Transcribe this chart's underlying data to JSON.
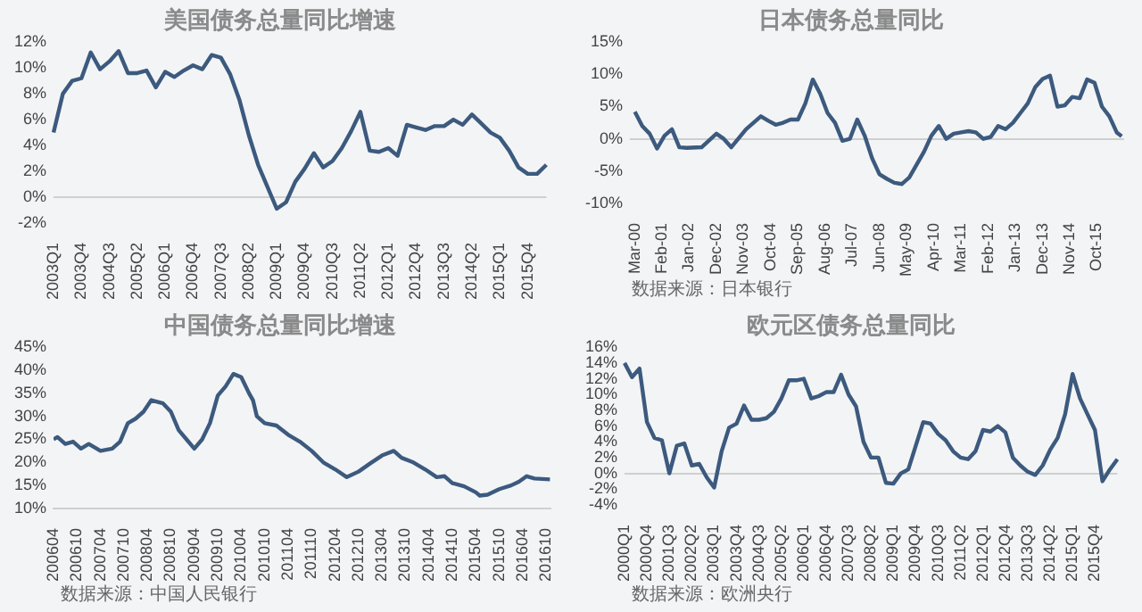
{
  "chart_data": [
    {
      "type": "line",
      "title": "美国债务总量同比增速",
      "color": "#3c5a7e",
      "categories": [
        "2003Q1",
        null,
        null,
        "2003Q4",
        null,
        null,
        "2004Q3",
        null,
        null,
        "2005Q2",
        null,
        null,
        "2006Q1",
        null,
        null,
        "2006Q4",
        null,
        null,
        "2007Q3",
        null,
        null,
        "2008Q2",
        null,
        null,
        "2009Q1",
        null,
        null,
        "2009Q4",
        null,
        null,
        "2010Q3",
        null,
        null,
        "2011Q2",
        null,
        null,
        "2012Q1",
        null,
        null,
        "2012Q4",
        null,
        null,
        "2013Q3",
        null,
        null,
        "2014Q2",
        null,
        null,
        "2015Q1",
        null,
        null,
        "2015Q4",
        null,
        null
      ],
      "values": [
        5.0,
        8.0,
        9.0,
        9.2,
        11.2,
        9.9,
        10.5,
        11.3,
        9.6,
        9.6,
        9.8,
        8.5,
        9.7,
        9.3,
        9.8,
        10.2,
        9.9,
        11.0,
        10.8,
        9.5,
        7.5,
        4.8,
        2.5,
        0.8,
        -0.9,
        -0.4,
        1.2,
        2.2,
        3.4,
        2.3,
        2.8,
        3.8,
        5.1,
        6.6,
        3.6,
        3.5,
        3.8,
        3.2,
        5.6,
        5.4,
        5.2,
        5.5,
        5.5,
        6.0,
        5.6,
        6.4,
        5.7,
        5.0,
        4.6,
        3.6,
        2.3,
        1.8,
        1.8,
        2.5
      ],
      "ylim": [
        -2,
        12
      ],
      "yticks": [
        {
          "value": -2,
          "label": "-2%"
        },
        {
          "value": 0,
          "label": "0%"
        },
        {
          "value": 2,
          "label": "2%"
        },
        {
          "value": 4,
          "label": "4%"
        },
        {
          "value": 6,
          "label": "6%"
        },
        {
          "value": 8,
          "label": "8%"
        },
        {
          "value": 10,
          "label": "10%"
        },
        {
          "value": 12,
          "label": "12%"
        }
      ]
    },
    {
      "type": "line",
      "title": "日本债务总量同比",
      "color": "#3c5a7e",
      "x": [
        "2000-03",
        "2000-06",
        "2000-09",
        "2000-12",
        "2001-03",
        "2001-06",
        "2001-09",
        "2001-12",
        "2002-06",
        "2002-12",
        "2003-03",
        "2003-06",
        "2003-12",
        "2004-03",
        "2004-06",
        "2004-09",
        "2004-12",
        "2005-03",
        "2005-06",
        "2005-09",
        "2005-12",
        "2006-03",
        "2006-06",
        "2006-09",
        "2006-12",
        "2007-03",
        "2007-06",
        "2007-09",
        "2007-12",
        "2008-03",
        "2008-06",
        "2008-09",
        "2008-12",
        "2009-03",
        "2009-06",
        "2009-09",
        "2009-12",
        "2010-03",
        "2010-06",
        "2010-09",
        "2010-12",
        "2011-03",
        "2011-06",
        "2011-09",
        "2011-12",
        "2012-03",
        "2012-06",
        "2012-09",
        "2012-12",
        "2013-03",
        "2013-06",
        "2013-09",
        "2013-12",
        "2014-03",
        "2014-06",
        "2014-09",
        "2014-12",
        "2015-03",
        "2015-06",
        "2015-09",
        "2015-12",
        "2016-03",
        "2016-06",
        "2016-08"
      ],
      "values": [
        4.2,
        2.0,
        0.8,
        -1.5,
        0.5,
        1.5,
        -1.3,
        -1.4,
        -1.3,
        0.8,
        0.0,
        -1.3,
        1.5,
        2.5,
        3.5,
        2.8,
        2.2,
        2.5,
        3.0,
        3.0,
        5.5,
        9.2,
        7.0,
        4.0,
        2.5,
        -0.3,
        0.0,
        3.0,
        0.5,
        -3.0,
        -5.5,
        -6.2,
        -6.8,
        -7.0,
        -6.0,
        -4.0,
        -2.0,
        0.5,
        2.0,
        0.0,
        0.8,
        1.0,
        1.2,
        1.0,
        0.0,
        0.3,
        2.0,
        1.5,
        2.5,
        4.0,
        5.5,
        8.0,
        9.3,
        9.8,
        5.0,
        5.2,
        6.5,
        6.3,
        9.2,
        8.7,
        5.0,
        3.5,
        1.0,
        0.4
      ],
      "xlim": [
        "2000-01",
        "2016-09"
      ],
      "xticks": [
        {
          "value": "2000-03",
          "label": "Mar-00"
        },
        {
          "value": "2001-02",
          "label": "Feb-01"
        },
        {
          "value": "2002-01",
          "label": "Jan-02"
        },
        {
          "value": "2002-12",
          "label": "Dec-02"
        },
        {
          "value": "2003-11",
          "label": "Nov-03"
        },
        {
          "value": "2004-10",
          "label": "Oct-04"
        },
        {
          "value": "2005-09",
          "label": "Sep-05"
        },
        {
          "value": "2006-08",
          "label": "Aug-06"
        },
        {
          "value": "2007-07",
          "label": "Jul-07"
        },
        {
          "value": "2008-06",
          "label": "Jun-08"
        },
        {
          "value": "2009-05",
          "label": "May-09"
        },
        {
          "value": "2010-04",
          "label": "Apr-10"
        },
        {
          "value": "2011-03",
          "label": "Mar-11"
        },
        {
          "value": "2012-02",
          "label": "Feb-12"
        },
        {
          "value": "2013-01",
          "label": "Jan-13"
        },
        {
          "value": "2013-12",
          "label": "Dec-13"
        },
        {
          "value": "2014-11",
          "label": "Nov-14"
        },
        {
          "value": "2015-10",
          "label": "Oct-15"
        }
      ],
      "ylim": [
        -10,
        15
      ],
      "yticks": [
        {
          "value": -10,
          "label": "-10%"
        },
        {
          "value": -5,
          "label": "-5%"
        },
        {
          "value": 0,
          "label": "0%"
        },
        {
          "value": 5,
          "label": "5%"
        },
        {
          "value": 10,
          "label": "10%"
        },
        {
          "value": 15,
          "label": "15%"
        }
      ],
      "annotations": [
        "数据来源：日本银行"
      ]
    },
    {
      "type": "line",
      "title": "中国债务总量同比增速",
      "color": "#3c5a7e",
      "x": [
        "2006-04",
        "2006-05",
        "2006-07",
        "2006-09",
        "2006-11",
        "2007-01",
        "2007-04",
        "2007-07",
        "2007-09",
        "2007-11",
        "2008-01",
        "2008-03",
        "2008-05",
        "2008-08",
        "2008-10",
        "2008-12",
        "2009-02",
        "2009-04",
        "2009-06",
        "2009-08",
        "2009-10",
        "2009-12",
        "2010-02",
        "2010-04",
        "2010-06",
        "2010-07",
        "2010-08",
        "2010-10",
        "2011-01",
        "2011-04",
        "2011-07",
        "2011-10",
        "2012-01",
        "2012-04",
        "2012-07",
        "2012-10",
        "2013-01",
        "2013-04",
        "2013-07",
        "2013-09",
        "2013-12",
        "2014-03",
        "2014-06",
        "2014-08",
        "2014-10",
        "2015-01",
        "2015-04",
        "2015-05",
        "2015-07",
        "2015-10",
        "2016-01",
        "2016-03",
        "2016-05",
        "2016-07",
        "2016-09",
        "2016-11"
      ],
      "values": [
        25.0,
        25.5,
        24.0,
        24.5,
        23.0,
        24.0,
        22.5,
        23.0,
        24.5,
        28.5,
        29.5,
        31.0,
        33.5,
        32.8,
        31.0,
        27.0,
        25.0,
        23.0,
        25.0,
        28.5,
        34.5,
        36.5,
        39.2,
        38.5,
        35.0,
        33.5,
        30.0,
        28.5,
        28.0,
        26.0,
        24.5,
        22.5,
        20.0,
        18.5,
        16.8,
        18.0,
        19.8,
        21.5,
        22.5,
        21.0,
        20.0,
        18.5,
        16.8,
        17.0,
        15.5,
        14.8,
        13.5,
        12.8,
        13.0,
        14.2,
        15.0,
        15.8,
        17.0,
        16.5,
        16.4,
        16.3
      ],
      "xticks": [
        {
          "value": "2006-04",
          "label": "200604"
        },
        {
          "value": "2006-10",
          "label": "200610"
        },
        {
          "value": "2007-04",
          "label": "200704"
        },
        {
          "value": "2007-10",
          "label": "200710"
        },
        {
          "value": "2008-04",
          "label": "200804"
        },
        {
          "value": "2008-10",
          "label": "200810"
        },
        {
          "value": "2009-04",
          "label": "200904"
        },
        {
          "value": "2009-10",
          "label": "200910"
        },
        {
          "value": "2010-04",
          "label": "201004"
        },
        {
          "value": "2010-10",
          "label": "201010"
        },
        {
          "value": "2011-04",
          "label": "201104"
        },
        {
          "value": "2011-10",
          "label": "201110"
        },
        {
          "value": "2012-04",
          "label": "201204"
        },
        {
          "value": "2012-10",
          "label": "201210"
        },
        {
          "value": "2013-04",
          "label": "201304"
        },
        {
          "value": "2013-10",
          "label": "201310"
        },
        {
          "value": "2014-04",
          "label": "201404"
        },
        {
          "value": "2014-10",
          "label": "201410"
        },
        {
          "value": "2015-04",
          "label": "201504"
        },
        {
          "value": "2015-10",
          "label": "201510"
        },
        {
          "value": "2016-04",
          "label": "201604"
        },
        {
          "value": "2016-10",
          "label": "201610"
        }
      ],
      "xlim": [
        "2006-04",
        "2016-11"
      ],
      "ylim": [
        10,
        45
      ],
      "yticks": [
        {
          "value": 10,
          "label": "10%"
        },
        {
          "value": 15,
          "label": "15%"
        },
        {
          "value": 20,
          "label": "20%"
        },
        {
          "value": 25,
          "label": "25%"
        },
        {
          "value": 30,
          "label": "30%"
        },
        {
          "value": 35,
          "label": "35%"
        },
        {
          "value": 40,
          "label": "40%"
        },
        {
          "value": 45,
          "label": "45%"
        }
      ],
      "annotations": [
        "数据来源：中国人民银行"
      ]
    },
    {
      "type": "line",
      "title": "欧元区债务总量同比",
      "color": "#3c5a7e",
      "categories": [
        "2000Q1",
        null,
        null,
        "2000Q4",
        null,
        null,
        "2001Q3",
        null,
        null,
        "2002Q2",
        null,
        null,
        "2003Q1",
        null,
        null,
        "2003Q4",
        null,
        null,
        "2004Q3",
        null,
        null,
        "2005Q2",
        null,
        null,
        "2006Q1",
        null,
        null,
        "2006Q4",
        null,
        null,
        "2007Q3",
        null,
        null,
        "2008Q2",
        null,
        null,
        "2009Q1",
        null,
        null,
        "2009Q4",
        null,
        null,
        "2010Q3",
        null,
        null,
        "2011Q2",
        null,
        null,
        "2012Q1",
        null,
        null,
        "2012Q4",
        null,
        null,
        "2013Q3",
        null,
        null,
        "2014Q2",
        null,
        null,
        "2015Q1",
        null,
        null,
        "2015Q4",
        null,
        null,
        null
      ],
      "values": [
        14.0,
        12.2,
        13.3,
        6.5,
        4.5,
        4.2,
        0.0,
        3.5,
        3.8,
        1.0,
        1.2,
        -0.5,
        -1.8,
        2.8,
        5.8,
        6.3,
        8.6,
        6.8,
        6.8,
        7.0,
        7.8,
        9.5,
        11.8,
        11.8,
        12.0,
        9.5,
        9.8,
        10.3,
        10.3,
        12.5,
        10.0,
        8.5,
        4.0,
        2.0,
        2.0,
        -1.2,
        -1.3,
        0.0,
        0.5,
        3.5,
        6.5,
        6.3,
        5.0,
        4.2,
        2.8,
        2.0,
        1.8,
        2.8,
        5.5,
        5.3,
        6.0,
        5.2,
        2.0,
        1.0,
        0.2,
        -0.2,
        1.0,
        3.0,
        4.5,
        7.5,
        12.6,
        9.5,
        7.5,
        5.5,
        -1.0,
        0.5,
        1.8
      ],
      "ylim": [
        -4,
        16
      ],
      "yticks": [
        {
          "value": -4,
          "label": "-4%"
        },
        {
          "value": -2,
          "label": "-2%"
        },
        {
          "value": 0,
          "label": "0%"
        },
        {
          "value": 2,
          "label": "2%"
        },
        {
          "value": 4,
          "label": "4%"
        },
        {
          "value": 6,
          "label": "6%"
        },
        {
          "value": 8,
          "label": "8%"
        },
        {
          "value": 10,
          "label": "10%"
        },
        {
          "value": 12,
          "label": "12%"
        },
        {
          "value": 14,
          "label": "14%"
        },
        {
          "value": 16,
          "label": "16%"
        }
      ],
      "annotations": [
        "数据来源：欧洲央行"
      ]
    }
  ]
}
